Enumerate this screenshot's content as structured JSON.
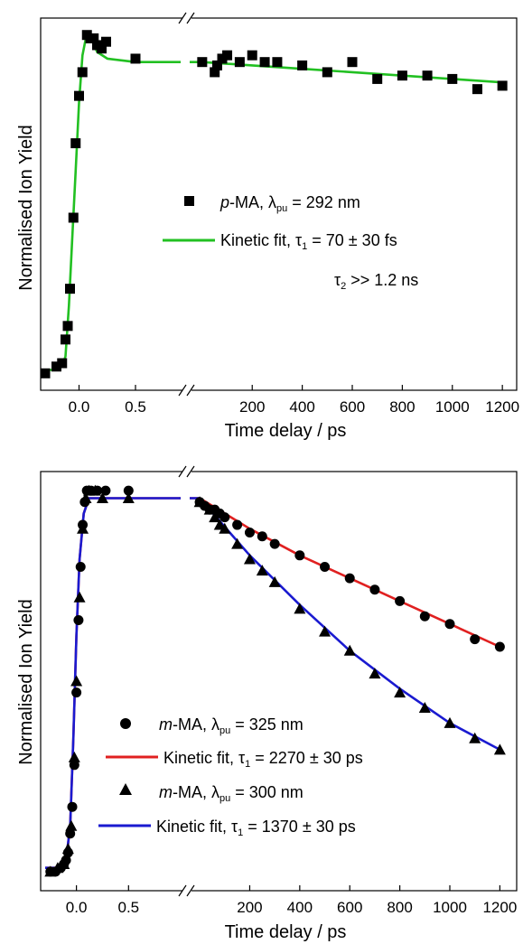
{
  "chart_data": [
    {
      "type": "scatter",
      "xlabel": "Time delay / ps",
      "ylabel": "Normalised Ion Yield",
      "x_axis_break": true,
      "xlim_left": [
        -0.3,
        0.9
      ],
      "xlim_right": [
        -50,
        1250
      ],
      "ylim": [
        -0.05,
        1.05
      ],
      "x_ticks_left": [
        0.0,
        0.5
      ],
      "x_tick_labels_left": [
        "0.0",
        "0.5"
      ],
      "x_ticks_right": [
        200,
        400,
        600,
        800,
        1000,
        1200
      ],
      "x_tick_labels_right": [
        "200",
        "400",
        "600",
        "800",
        "1000",
        "1200"
      ],
      "series": [
        {
          "name": "p-MA, λpu = 292 nm",
          "marker": "square",
          "color": "#000000",
          "points_left": [
            [
              -0.3,
              0.0
            ],
            [
              -0.2,
              0.02
            ],
            [
              -0.15,
              0.03
            ],
            [
              -0.12,
              0.1
            ],
            [
              -0.1,
              0.14
            ],
            [
              -0.08,
              0.25
            ],
            [
              -0.05,
              0.46
            ],
            [
              -0.03,
              0.68
            ],
            [
              0.0,
              0.82
            ],
            [
              0.03,
              0.89
            ],
            [
              0.07,
              1.0
            ],
            [
              0.1,
              0.99
            ],
            [
              0.13,
              0.99
            ],
            [
              0.16,
              0.97
            ],
            [
              0.2,
              0.96
            ],
            [
              0.24,
              0.98
            ],
            [
              0.5,
              0.93
            ]
          ],
          "points_right": [
            [
              0,
              0.92
            ],
            [
              50,
              0.89
            ],
            [
              60,
              0.91
            ],
            [
              80,
              0.93
            ],
            [
              100,
              0.94
            ],
            [
              150,
              0.92
            ],
            [
              200,
              0.94
            ],
            [
              250,
              0.92
            ],
            [
              300,
              0.92
            ],
            [
              400,
              0.91
            ],
            [
              500,
              0.89
            ],
            [
              600,
              0.92
            ],
            [
              700,
              0.87
            ],
            [
              800,
              0.88
            ],
            [
              900,
              0.88
            ],
            [
              1000,
              0.87
            ],
            [
              1100,
              0.84
            ],
            [
              1200,
              0.85
            ]
          ]
        },
        {
          "name": "Kinetic fit, τ1 = 70 ± 30 fs",
          "marker": "line",
          "color": "#22c022",
          "points_left": [
            [
              -0.3,
              0.01
            ],
            [
              -0.2,
              0.01
            ],
            [
              -0.15,
              0.02
            ],
            [
              -0.12,
              0.05
            ],
            [
              -0.09,
              0.2
            ],
            [
              -0.06,
              0.4
            ],
            [
              -0.03,
              0.6
            ],
            [
              0.0,
              0.8
            ],
            [
              0.03,
              0.94
            ],
            [
              0.06,
              0.99
            ],
            [
              0.09,
              1.0
            ],
            [
              0.12,
              0.98
            ],
            [
              0.16,
              0.95
            ],
            [
              0.25,
              0.93
            ],
            [
              0.5,
              0.92
            ],
            [
              0.9,
              0.92
            ]
          ],
          "points_right": [
            [
              -50,
              0.92
            ],
            [
              0,
              0.92
            ],
            [
              200,
              0.91
            ],
            [
              400,
              0.9
            ],
            [
              600,
              0.89
            ],
            [
              800,
              0.88
            ],
            [
              1000,
              0.87
            ],
            [
              1200,
              0.86
            ]
          ]
        }
      ],
      "legend": {
        "placement": "center-right",
        "entries": [
          {
            "species": "p",
            "rest": "-MA, λ",
            "sub": "pu",
            "tail": " = 292 nm"
          },
          {
            "species": "",
            "rest": "Kinetic fit, τ",
            "sub": "1",
            "tail": " = 70 ± 30 fs"
          },
          {
            "species": "",
            "rest": "τ",
            "sub": "2",
            "tail": " >> 1.2 ns"
          }
        ]
      }
    },
    {
      "type": "scatter",
      "xlabel": "Time delay / ps",
      "ylabel": "Normalised Ion Yield",
      "x_axis_break": true,
      "xlim_left": [
        -0.3,
        1.0
      ],
      "xlim_right": [
        -40,
        1260
      ],
      "ylim": [
        -0.05,
        1.05
      ],
      "x_ticks_left": [
        0.0,
        0.5
      ],
      "x_tick_labels_left": [
        "0.0",
        "0.5"
      ],
      "x_ticks_right": [
        200,
        400,
        600,
        800,
        1000,
        1200
      ],
      "x_tick_labels_right": [
        "200",
        "400",
        "600",
        "800",
        "1000",
        "1200"
      ],
      "series": [
        {
          "name": "m-MA, λpu = 325 nm",
          "marker": "circle",
          "color": "#000000",
          "points_left": [
            [
              -0.25,
              0.0
            ],
            [
              -0.2,
              0.0
            ],
            [
              -0.15,
              0.01
            ],
            [
              -0.12,
              0.02
            ],
            [
              -0.1,
              0.03
            ],
            [
              -0.08,
              0.05
            ],
            [
              -0.06,
              0.1
            ],
            [
              -0.04,
              0.17
            ],
            [
              -0.02,
              0.28
            ],
            [
              0.0,
              0.47
            ],
            [
              0.02,
              0.66
            ],
            [
              0.04,
              0.8
            ],
            [
              0.06,
              0.91
            ],
            [
              0.08,
              0.97
            ],
            [
              0.1,
              1.0
            ],
            [
              0.14,
              1.0
            ],
            [
              0.2,
              1.0
            ],
            [
              0.28,
              1.0
            ],
            [
              0.5,
              1.0
            ]
          ],
          "points_right": [
            [
              0,
              0.97
            ],
            [
              20,
              0.96
            ],
            [
              40,
              0.95
            ],
            [
              60,
              0.95
            ],
            [
              80,
              0.94
            ],
            [
              100,
              0.93
            ],
            [
              150,
              0.91
            ],
            [
              200,
              0.89
            ],
            [
              250,
              0.88
            ],
            [
              300,
              0.86
            ],
            [
              400,
              0.83
            ],
            [
              500,
              0.8
            ],
            [
              600,
              0.77
            ],
            [
              700,
              0.74
            ],
            [
              800,
              0.71
            ],
            [
              900,
              0.67
            ],
            [
              1000,
              0.65
            ],
            [
              1100,
              0.61
            ],
            [
              1200,
              0.59
            ]
          ]
        },
        {
          "name": "Kinetic fit, τ1 = 2270 ± 30 ps",
          "marker": "line",
          "color": "#e02020",
          "points_left": [
            [
              -0.3,
              0.01
            ],
            [
              -0.15,
              0.01
            ],
            [
              -0.1,
              0.03
            ],
            [
              -0.06,
              0.12
            ],
            [
              -0.03,
              0.35
            ],
            [
              0.0,
              0.62
            ],
            [
              0.03,
              0.82
            ],
            [
              0.07,
              0.94
            ],
            [
              0.12,
              0.98
            ],
            [
              0.2,
              0.98
            ],
            [
              1.0,
              0.98
            ]
          ],
          "points_right": [
            [
              -40,
              0.98
            ],
            [
              0,
              0.98
            ],
            [
              200,
              0.9
            ],
            [
              400,
              0.83
            ],
            [
              600,
              0.77
            ],
            [
              800,
              0.71
            ],
            [
              1000,
              0.65
            ],
            [
              1200,
              0.59
            ]
          ]
        },
        {
          "name": "m-MA, λpu = 300 nm",
          "marker": "triangle",
          "color": "#000000",
          "points_left": [
            [
              -0.25,
              0.0
            ],
            [
              -0.18,
              0.01
            ],
            [
              -0.12,
              0.02
            ],
            [
              -0.08,
              0.06
            ],
            [
              -0.05,
              0.12
            ],
            [
              -0.02,
              0.3
            ],
            [
              0.0,
              0.5
            ],
            [
              0.03,
              0.72
            ],
            [
              0.06,
              0.9
            ],
            [
              0.09,
              0.98
            ],
            [
              0.12,
              1.0
            ],
            [
              0.18,
              1.0
            ],
            [
              0.25,
              0.98
            ],
            [
              0.5,
              0.98
            ]
          ],
          "points_right": [
            [
              0,
              0.97
            ],
            [
              40,
              0.95
            ],
            [
              60,
              0.93
            ],
            [
              80,
              0.91
            ],
            [
              100,
              0.9
            ],
            [
              150,
              0.86
            ],
            [
              200,
              0.82
            ],
            [
              250,
              0.79
            ],
            [
              300,
              0.76
            ],
            [
              400,
              0.69
            ],
            [
              500,
              0.63
            ],
            [
              600,
              0.58
            ],
            [
              700,
              0.52
            ],
            [
              800,
              0.47
            ],
            [
              900,
              0.43
            ],
            [
              1000,
              0.39
            ],
            [
              1100,
              0.35
            ],
            [
              1200,
              0.32
            ]
          ]
        },
        {
          "name": "Kinetic fit, τ1 = 1370 ± 30 ps",
          "marker": "line",
          "color": "#1a1ad0",
          "points_left": [
            [
              -0.3,
              0.01
            ],
            [
              -0.15,
              0.01
            ],
            [
              -0.1,
              0.03
            ],
            [
              -0.06,
              0.12
            ],
            [
              -0.03,
              0.35
            ],
            [
              0.0,
              0.62
            ],
            [
              0.03,
              0.82
            ],
            [
              0.07,
              0.94
            ],
            [
              0.12,
              0.98
            ],
            [
              0.2,
              0.98
            ],
            [
              1.0,
              0.98
            ]
          ],
          "points_right": [
            [
              -40,
              0.98
            ],
            [
              0,
              0.98
            ],
            [
              200,
              0.83
            ],
            [
              400,
              0.7
            ],
            [
              600,
              0.58
            ],
            [
              800,
              0.48
            ],
            [
              1000,
              0.39
            ],
            [
              1200,
              0.32
            ]
          ]
        }
      ],
      "legend": {
        "placement": "bottom-right",
        "entries": [
          {
            "species": "m",
            "rest": "-MA, λ",
            "sub": "pu",
            "tail": " = 325 nm"
          },
          {
            "species": "",
            "rest": "Kinetic fit, τ",
            "sub": "1",
            "tail": " = 2270 ± 30 ps"
          },
          {
            "species": "m",
            "rest": "-MA, λ",
            "sub": "pu",
            "tail": " = 300 nm"
          },
          {
            "species": "",
            "rest": "Kinetic fit, τ",
            "sub": "1",
            "tail": " = 1370 ± 30 ps"
          }
        ]
      }
    }
  ]
}
